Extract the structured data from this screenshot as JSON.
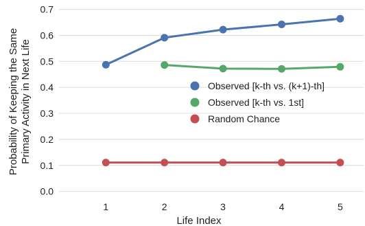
{
  "chart_data": {
    "type": "line",
    "title": "",
    "xlabel": "Life Index",
    "ylabel_lines": [
      "Probability of Keeping the Same",
      "Primary Activity in Next Life"
    ],
    "x_ticks": [
      "1",
      "2",
      "3",
      "4",
      "5"
    ],
    "y_ticks": [
      "0.0",
      "0.1",
      "0.2",
      "0.3",
      "0.4",
      "0.5",
      "0.6",
      "0.7"
    ],
    "xlim": [
      0.2,
      5.4
    ],
    "ylim": [
      -0.03,
      0.72
    ],
    "grid": "horizontal",
    "legend_position": "center-right",
    "series": [
      {
        "name": "Observed [k-th vs. (k+1)-th]",
        "color": "#4c72b0",
        "x": [
          1,
          2,
          3,
          4,
          5
        ],
        "y": [
          0.487,
          0.591,
          0.622,
          0.642,
          0.664
        ]
      },
      {
        "name": "Observed [k-th vs. 1st]",
        "color": "#55a868",
        "x": [
          2,
          3,
          4,
          5
        ],
        "y": [
          0.486,
          0.472,
          0.471,
          0.479
        ]
      },
      {
        "name": "Random Chance",
        "color": "#c44e52",
        "x": [
          1,
          2,
          3,
          4,
          5
        ],
        "y": [
          0.111,
          0.111,
          0.111,
          0.111,
          0.111
        ]
      }
    ]
  }
}
